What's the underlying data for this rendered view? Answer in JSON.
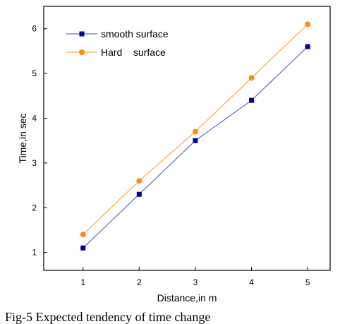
{
  "chart_data": {
    "type": "line",
    "x": [
      1,
      2,
      3,
      4,
      5
    ],
    "xlim": [
      0.3,
      5.4
    ],
    "ylim": [
      0.6,
      6.5
    ],
    "xticks": [
      1,
      2,
      3,
      4,
      5
    ],
    "yticks": [
      1,
      2,
      3,
      4,
      5,
      6
    ],
    "xlabel": "Distance,in m",
    "ylabel": "Time,in sec",
    "grid": false,
    "legend_position": "top-left",
    "series": [
      {
        "name": "smooth surface",
        "values": [
          1.1,
          2.3,
          3.5,
          4.4,
          5.6
        ],
        "line_color": "#6666cc",
        "marker_color": "#000099",
        "marker": "square"
      },
      {
        "name": "Hard    surface",
        "values": [
          1.4,
          2.6,
          3.7,
          4.9,
          6.1
        ],
        "line_color": "#ffa640",
        "marker_color": "#ff8c1a",
        "marker": "circle"
      }
    ]
  },
  "caption": "Fig-5 Expected tendency of time change"
}
